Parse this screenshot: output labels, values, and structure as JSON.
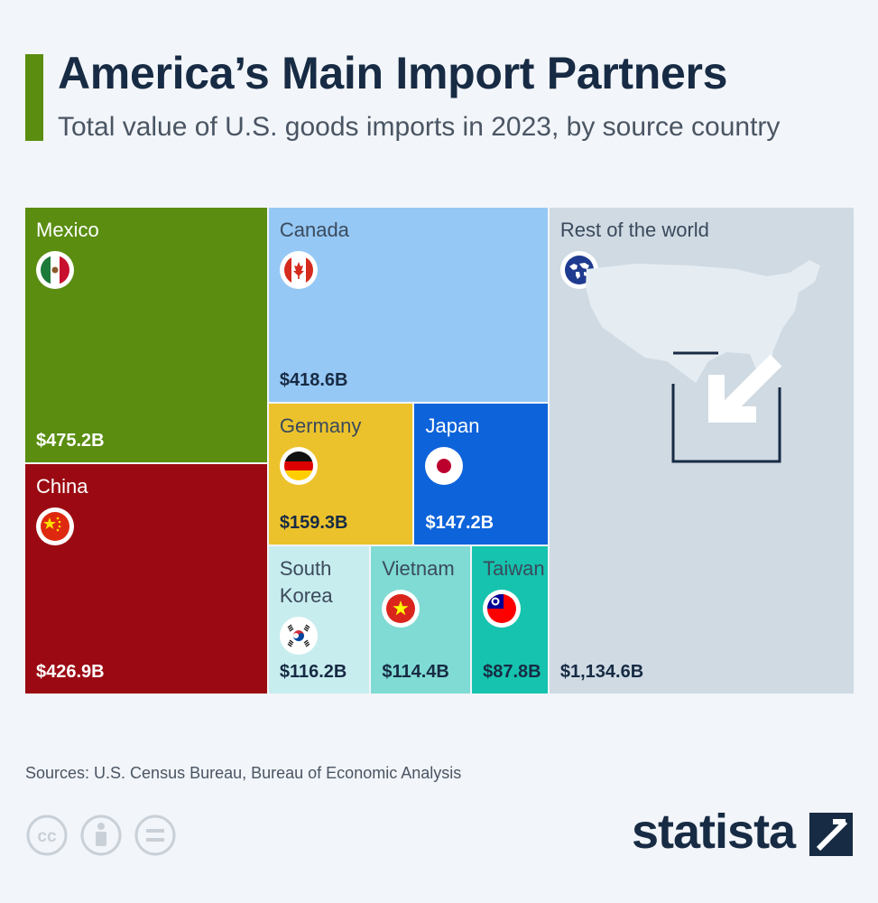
{
  "header": {
    "title": "America’s Main Import Partners",
    "subtitle": "Total value of U.S. goods imports in 2023, by source country"
  },
  "colors": {
    "accent": "#5a8d10",
    "mexico": "#5a8d10",
    "china": "#9b0a12",
    "canada": "#96c8f5",
    "germany": "#ecc22c",
    "japan": "#0d63da",
    "south_korea": "#c8edef",
    "vietnam": "#7fdbd4",
    "taiwan": "#16c3ae",
    "rest_of_world": "#cfdae3"
  },
  "chart_data": {
    "type": "treemap",
    "title": "America’s Main Import Partners",
    "subtitle": "Total value of U.S. goods imports in 2023, by source country",
    "unit": "USD billions",
    "items": [
      {
        "name": "Mexico",
        "value": 475.2,
        "label": "$475.2B",
        "flag": "mexico-flag-icon"
      },
      {
        "name": "China",
        "value": 426.9,
        "label": "$426.9B",
        "flag": "china-flag-icon"
      },
      {
        "name": "Canada",
        "value": 418.6,
        "label": "$418.6B",
        "flag": "canada-flag-icon"
      },
      {
        "name": "Germany",
        "value": 159.3,
        "label": "$159.3B",
        "flag": "germany-flag-icon"
      },
      {
        "name": "Japan",
        "value": 147.2,
        "label": "$147.2B",
        "flag": "japan-flag-icon"
      },
      {
        "name": "South\nKorea",
        "value": 116.2,
        "label": "$116.2B",
        "flag": "south-korea-flag-icon"
      },
      {
        "name": "Vietnam",
        "value": 114.4,
        "label": "$114.4B",
        "flag": "vietnam-flag-icon"
      },
      {
        "name": "Taiwan",
        "value": 87.8,
        "label": "$87.8B",
        "flag": "taiwan-flag-icon"
      },
      {
        "name": "Rest of the world",
        "value": 1134.6,
        "label": "$1,134.6B",
        "flag": "globe-icon"
      }
    ]
  },
  "footer": {
    "source": "Sources: U.S. Census Bureau, Bureau of Economic Analysis",
    "brand": "statista",
    "license_icons": [
      "creative-commons-icon",
      "attribution-icon",
      "no-derivatives-icon"
    ]
  }
}
